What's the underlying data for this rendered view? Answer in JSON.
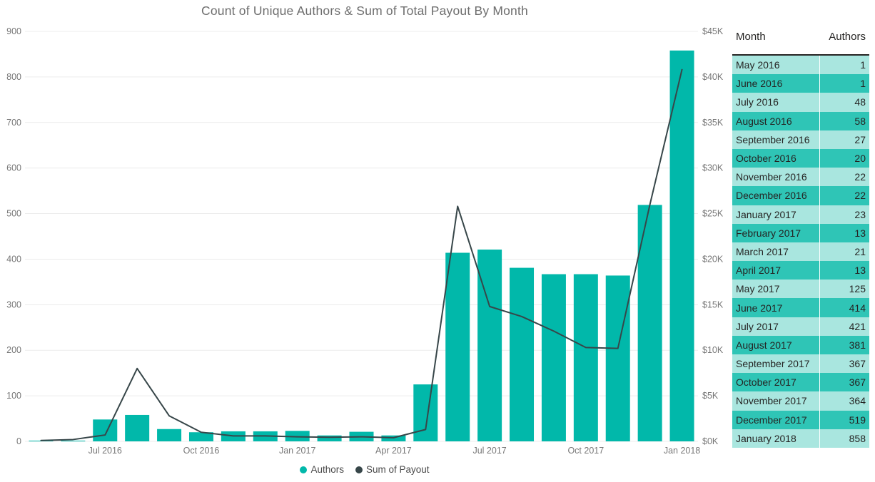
{
  "title": "Count of Unique Authors & Sum of Total Payout By Month",
  "colors": {
    "bar": "#01b8aa",
    "line": "#374649",
    "grid": "#ececec",
    "axis_text": "#777777",
    "title_text": "#6d6d6d",
    "table_row_light": "#a9e6df",
    "table_row_dark": "#2fc5b6",
    "table_text": "#252423"
  },
  "chart_data": {
    "type": "combo-bar-line",
    "title": "Count of Unique Authors & Sum of Total Payout By Month",
    "categories": [
      "May 2016",
      "June 2016",
      "July 2016",
      "August 2016",
      "September 2016",
      "October 2016",
      "November 2016",
      "December 2016",
      "January 2017",
      "February 2017",
      "March 2017",
      "April 2017",
      "May 2017",
      "June 2017",
      "July 2017",
      "August 2017",
      "September 2017",
      "October 2017",
      "November 2017",
      "December 2017",
      "January 2018"
    ],
    "series": [
      {
        "name": "Authors",
        "type": "bar",
        "axis": "left",
        "color": "#01b8aa",
        "values": [
          1,
          1,
          48,
          58,
          27,
          20,
          22,
          22,
          23,
          13,
          21,
          13,
          125,
          414,
          421,
          381,
          367,
          367,
          364,
          519,
          858
        ]
      },
      {
        "name": "Sum of Payout",
        "type": "line",
        "axis": "right",
        "color": "#374649",
        "values": [
          100,
          200,
          700,
          8000,
          2800,
          1000,
          600,
          600,
          500,
          450,
          500,
          400,
          1300,
          25800,
          14800,
          13700,
          12100,
          10300,
          10200,
          26000,
          40800
        ]
      }
    ],
    "left_axis": {
      "min": 0,
      "max": 900,
      "step": 100,
      "tick_labels": [
        "0",
        "100",
        "200",
        "300",
        "400",
        "500",
        "600",
        "700",
        "800",
        "900"
      ]
    },
    "right_axis": {
      "min": 0,
      "max": 45000,
      "step": 5000,
      "tick_labels": [
        "$0K",
        "$5K",
        "$10K",
        "$15K",
        "$20K",
        "$25K",
        "$30K",
        "$35K",
        "$40K",
        "$45K"
      ]
    },
    "x_tick_indices": [
      2,
      5,
      8,
      11,
      14,
      17,
      20
    ],
    "x_tick_labels": [
      "Jul 2016",
      "Oct 2016",
      "Jan 2017",
      "Apr 2017",
      "Jul 2017",
      "Oct 2017",
      "Jan 2018"
    ],
    "grid": true,
    "legend_position": "bottom",
    "legend": [
      {
        "label": "Authors",
        "color": "#01b8aa"
      },
      {
        "label": "Sum of Payout",
        "color": "#374649"
      }
    ]
  },
  "table": {
    "columns": [
      "Month",
      "Authors"
    ],
    "rows": [
      [
        "May 2016",
        "1"
      ],
      [
        "June 2016",
        "1"
      ],
      [
        "July 2016",
        "48"
      ],
      [
        "August 2016",
        "58"
      ],
      [
        "September 2016",
        "27"
      ],
      [
        "October 2016",
        "20"
      ],
      [
        "November 2016",
        "22"
      ],
      [
        "December 2016",
        "22"
      ],
      [
        "January 2017",
        "23"
      ],
      [
        "February 2017",
        "13"
      ],
      [
        "March 2017",
        "21"
      ],
      [
        "April 2017",
        "13"
      ],
      [
        "May 2017",
        "125"
      ],
      [
        "June 2017",
        "414"
      ],
      [
        "July 2017",
        "421"
      ],
      [
        "August 2017",
        "381"
      ],
      [
        "September 2017",
        "367"
      ],
      [
        "October 2017",
        "367"
      ],
      [
        "November 2017",
        "364"
      ],
      [
        "December 2017",
        "519"
      ],
      [
        "January 2018",
        "858"
      ]
    ]
  }
}
